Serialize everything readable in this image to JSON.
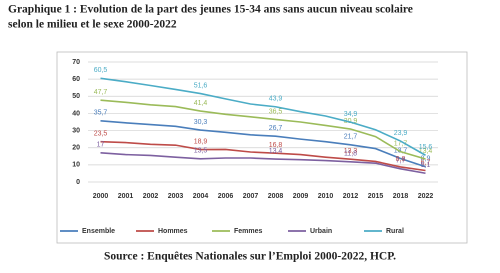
{
  "chart_data": {
    "type": "line",
    "title": "Graphique 1 : Evolution de la part des jeunes 15-34 ans sans aucun niveau scolaire",
    "subtitle": "selon le milieu et le sexe 2000-2022",
    "source": "Source : Enquêtes Nationales sur l’Emploi 2000-2022, HCP.",
    "categories": [
      "2000",
      "2001",
      "2002",
      "2003",
      "2004",
      "2006",
      "2007",
      "2008",
      "2009",
      "2010",
      "2012",
      "2015",
      "2018",
      "2022"
    ],
    "ylim": [
      0,
      70
    ],
    "yticks": [
      0,
      10,
      20,
      30,
      40,
      50,
      60,
      70
    ],
    "grid": true,
    "legend": "bottom",
    "series": [
      {
        "name": "Ensemble",
        "color": "#4a7ebb",
        "values": [
          35.7,
          34.5,
          33.5,
          32.5,
          30.3,
          29,
          27.5,
          26.7,
          25,
          23.5,
          21.7,
          19.5,
          13.7,
          8.9
        ],
        "value_labels": [
          "35,7",
          null,
          null,
          null,
          "30,3",
          null,
          null,
          "26,7",
          null,
          null,
          "21,7",
          null,
          "13,7",
          "8,9"
        ]
      },
      {
        "name": "Hommes",
        "color": "#be4b48",
        "values": [
          23.5,
          23,
          22,
          21.5,
          18.9,
          19,
          17.5,
          16.8,
          16,
          14.5,
          13.3,
          12,
          8.8,
          6.7
        ],
        "value_labels": [
          "23,5",
          null,
          null,
          null,
          "18,9",
          null,
          null,
          "16,8",
          null,
          null,
          "13,3",
          null,
          "8,8",
          "6,7"
        ]
      },
      {
        "name": "Femmes",
        "color": "#9bbb59",
        "values": [
          47.7,
          46.5,
          45,
          44,
          41.4,
          39.5,
          38,
          36.5,
          35,
          33,
          30.9,
          26.5,
          17.7,
          13.4
        ],
        "value_labels": [
          "47,7",
          null,
          null,
          null,
          "41,4",
          null,
          null,
          "36,5",
          null,
          null,
          "30,9",
          null,
          "17,7",
          "13,4"
        ]
      },
      {
        "name": "Urbain",
        "color": "#7d60a0",
        "values": [
          17,
          16,
          15.5,
          14.5,
          13.5,
          14,
          14,
          13.4,
          13,
          12.5,
          11.8,
          11,
          7.7,
          5.1
        ],
        "value_labels": [
          "17",
          null,
          null,
          null,
          "13,5",
          null,
          null,
          "13,4",
          null,
          null,
          "11,8",
          null,
          "7,7",
          "5,1"
        ]
      },
      {
        "name": "Rural",
        "color": "#4bacc6",
        "values": [
          60.5,
          58.5,
          56.3,
          54,
          51.6,
          48.5,
          45.5,
          43.9,
          41,
          38.5,
          34.9,
          30.5,
          23.9,
          15.6
        ],
        "value_labels": [
          "60,5",
          null,
          null,
          null,
          "51,6",
          null,
          null,
          "43,9",
          null,
          null,
          "34,9",
          null,
          "23,9",
          "15,6"
        ]
      }
    ]
  }
}
